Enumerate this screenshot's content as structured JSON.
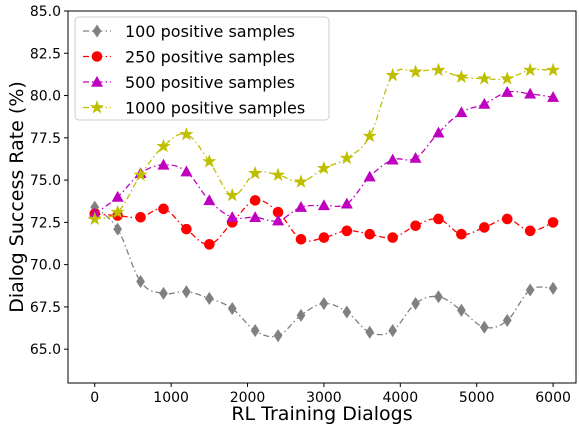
{
  "chart_data": {
    "type": "line",
    "title": "",
    "xlabel": "RL Training Dialogs",
    "ylabel": "Dialog Success Rate (%)",
    "xlim": [
      -350,
      6300
    ],
    "ylim": [
      63.0,
      85.0
    ],
    "xticks": [
      0,
      1000,
      2000,
      3000,
      4000,
      5000,
      6000
    ],
    "yticks": [
      65.0,
      67.5,
      70.0,
      72.5,
      75.0,
      77.5,
      80.0,
      82.5,
      85.0
    ],
    "ytick_labels": [
      "65.0",
      "67.5",
      "70.0",
      "72.5",
      "75.0",
      "77.5",
      "80.0",
      "82.5",
      "85.0"
    ],
    "x": [
      0,
      300,
      600,
      900,
      1200,
      1500,
      1800,
      2100,
      2400,
      2700,
      3000,
      3300,
      3600,
      3900,
      4200,
      4500,
      4800,
      5100,
      5400,
      5700,
      6000
    ],
    "legend_position": "top-left",
    "grid": false,
    "series": [
      {
        "name": "100 positive samples",
        "color": "#808080",
        "marker": "diamond",
        "dash": "6,3,1.5,3",
        "values": [
          73.4,
          72.1,
          69.0,
          68.3,
          68.4,
          68.0,
          67.4,
          66.1,
          65.8,
          67.0,
          67.7,
          67.2,
          66.0,
          66.1,
          67.7,
          68.1,
          67.3,
          66.3,
          66.7,
          68.5,
          68.6
        ]
      },
      {
        "name": "250 positive samples",
        "color": "#ff0000",
        "marker": "circle",
        "dash": "6,3,1.5,3",
        "values": [
          73.0,
          72.9,
          72.8,
          73.3,
          72.1,
          71.2,
          72.5,
          73.8,
          73.1,
          71.5,
          71.6,
          72.0,
          71.8,
          71.6,
          72.3,
          72.7,
          71.8,
          72.2,
          72.7,
          72.0,
          72.5
        ]
      },
      {
        "name": "500 positive samples",
        "color": "#bf00bf",
        "marker": "triangle",
        "dash": "6,3,1.5,3",
        "values": [
          73.0,
          74.0,
          75.4,
          75.9,
          75.5,
          73.8,
          72.8,
          72.8,
          72.6,
          73.4,
          73.5,
          73.6,
          75.2,
          76.2,
          76.3,
          77.8,
          79.0,
          79.5,
          80.2,
          80.1,
          79.9
        ]
      },
      {
        "name": "1000 positive samples",
        "color": "#bfbf00",
        "marker": "star",
        "dash": "6,3,1.5,3",
        "values": [
          72.7,
          73.1,
          75.3,
          77.0,
          77.7,
          76.1,
          74.1,
          75.4,
          75.3,
          74.9,
          75.7,
          76.3,
          77.6,
          81.2,
          81.4,
          81.5,
          81.1,
          81.0,
          81.0,
          81.5,
          81.5
        ]
      }
    ]
  }
}
